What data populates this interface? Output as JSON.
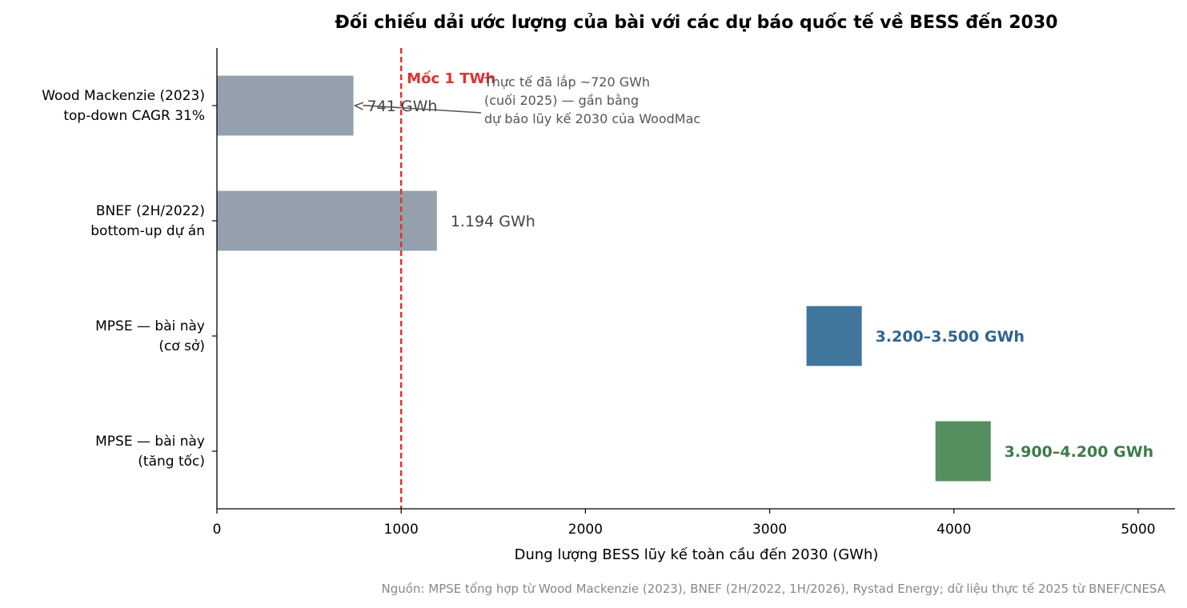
{
  "chart_data": {
    "type": "bar",
    "orientation": "horizontal",
    "title": "Đối chiếu dải ước lượng của bài với các dự báo quốc tế về BESS đến 2030",
    "xlabel": "Dung lượng BESS lũy kế toàn cầu đến 2030 (GWh)",
    "ylabel": "",
    "xlim": [
      0,
      5200
    ],
    "xticks": [
      0,
      1000,
      2000,
      3000,
      4000,
      5000
    ],
    "grid": false,
    "categories": [
      [
        "Wood Mackenzie (2023)",
        "top-down CAGR 31%"
      ],
      [
        "BNEF (2H/2022)",
        "bottom-up dự án"
      ],
      [
        "MPSE — bài này",
        "(cơ sở)"
      ],
      [
        "MPSE — bài này",
        "(tăng tốc)"
      ]
    ],
    "bars": [
      {
        "start": 0,
        "end": 741,
        "label": "741 GWh",
        "color": "#94a1ad",
        "label_color": "#444444",
        "label_bold": false
      },
      {
        "start": 0,
        "end": 1194,
        "label": "1.194 GWh",
        "color": "#94a1ad",
        "label_color": "#444444",
        "label_bold": false
      },
      {
        "start": 3200,
        "end": 3500,
        "label": "3.200–3.500 GWh",
        "color": "#41769c",
        "label_color": "#2f6490",
        "label_bold": true
      },
      {
        "start": 3900,
        "end": 4200,
        "label": "3.900–4.200 GWh",
        "color": "#558f60",
        "label_color": "#3d7c46",
        "label_bold": true
      }
    ],
    "reference_line": {
      "x": 1000,
      "label": "Mốc 1 TWh",
      "color": "#e03030"
    },
    "annotation": {
      "lines": [
        "Thực tế đã lắp ~720 GWh",
        "(cuối 2025) — gần bằng",
        "dự báo lũy kế 2030 của WoodMac"
      ],
      "target_x": 741,
      "target_category": 0
    }
  },
  "source_note": "Nguồn: MPSE tổng hợp từ Wood Mackenzie (2023), BNEF (2H/2022, 1H/2026), Rystad Energy; dữ liệu thực tế 2025 từ BNEF/CNESA"
}
